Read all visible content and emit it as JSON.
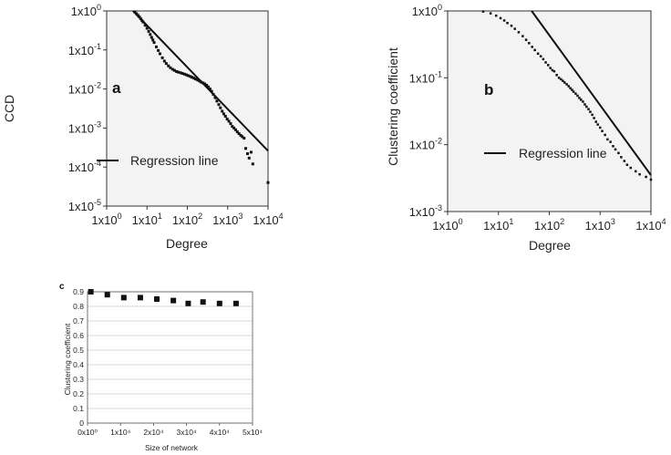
{
  "chart_data": [
    {
      "panel": "a",
      "type": "scatter",
      "scale": "log-log",
      "xlabel": "Degree",
      "ylabel": "CCD",
      "xlim": [
        1,
        10000
      ],
      "ylim": [
        1e-05,
        1
      ],
      "x_ticks": [
        1,
        10,
        100,
        1000,
        10000
      ],
      "y_ticks": [
        1e-05,
        0.0001,
        0.001,
        0.01,
        0.1,
        1
      ],
      "legend": "Regression line",
      "regression": {
        "x": [
          4.5,
          10000
        ],
        "y": [
          1.0,
          0.00026
        ]
      },
      "points": {
        "x": [
          5,
          5.5,
          6,
          6.5,
          7,
          7.5,
          8,
          9,
          10,
          11,
          12,
          13,
          14,
          15,
          17,
          19,
          21,
          24,
          27,
          30,
          34,
          38,
          43,
          48,
          54,
          60,
          68,
          76,
          85,
          95,
          105,
          118,
          130,
          145,
          160,
          180,
          200,
          220,
          245,
          270,
          300,
          330,
          365,
          400,
          440,
          490,
          540,
          600,
          660,
          730,
          800,
          880,
          970,
          1070,
          1180,
          1300,
          1430,
          1570,
          1730,
          1900,
          2100,
          2300,
          2550,
          2800,
          3100,
          3400,
          3800,
          4200,
          10000
        ],
        "y": [
          0.95,
          0.85,
          0.77,
          0.7,
          0.63,
          0.57,
          0.52,
          0.43,
          0.36,
          0.3,
          0.25,
          0.21,
          0.18,
          0.155,
          0.12,
          0.097,
          0.08,
          0.063,
          0.052,
          0.045,
          0.039,
          0.035,
          0.032,
          0.03,
          0.028,
          0.027,
          0.026,
          0.025,
          0.024,
          0.023,
          0.022,
          0.021,
          0.02,
          0.019,
          0.018,
          0.017,
          0.016,
          0.015,
          0.0143,
          0.0135,
          0.0125,
          0.0113,
          0.01,
          0.0087,
          0.0073,
          0.006,
          0.0049,
          0.004,
          0.0033,
          0.0027,
          0.0023,
          0.002,
          0.0017,
          0.0015,
          0.0013,
          0.0011,
          0.001,
          0.0009,
          0.0008,
          0.00072,
          0.00065,
          0.0006,
          0.00055,
          0.0003,
          0.00022,
          0.00017,
          0.00024,
          0.00012,
          4e-05
        ]
      }
    },
    {
      "panel": "b",
      "type": "scatter",
      "scale": "log-log",
      "xlabel": "Degree",
      "ylabel": "Clustering coefficient",
      "xlim": [
        1,
        10000
      ],
      "ylim": [
        0.001,
        1
      ],
      "x_ticks": [
        1,
        10,
        100,
        1000,
        10000
      ],
      "y_ticks": [
        0.001,
        0.01,
        0.1,
        1
      ],
      "legend": "Regression line",
      "regression": {
        "x": [
          45,
          10000
        ],
        "y": [
          1.0,
          0.0035
        ]
      },
      "points": {
        "x": [
          5,
          7,
          9,
          11,
          13,
          15,
          18,
          21,
          25,
          30,
          35,
          40,
          46,
          52,
          60,
          68,
          76,
          85,
          95,
          105,
          115,
          125,
          140,
          155,
          170,
          185,
          200,
          220,
          240,
          260,
          280,
          300,
          330,
          360,
          390,
          420,
          460,
          500,
          540,
          590,
          640,
          700,
          760,
          830,
          900,
          1000,
          1100,
          1250,
          1400,
          1600,
          1800,
          2000,
          2300,
          2600,
          3000,
          3400,
          4000,
          5000,
          6000,
          8000,
          10000
        ],
        "y": [
          0.98,
          0.92,
          0.85,
          0.78,
          0.72,
          0.66,
          0.6,
          0.54,
          0.48,
          0.42,
          0.37,
          0.33,
          0.29,
          0.26,
          0.23,
          0.21,
          0.19,
          0.17,
          0.155,
          0.14,
          0.13,
          0.125,
          0.11,
          0.1,
          0.095,
          0.09,
          0.085,
          0.08,
          0.075,
          0.07,
          0.066,
          0.062,
          0.058,
          0.054,
          0.05,
          0.047,
          0.044,
          0.04,
          0.037,
          0.034,
          0.031,
          0.028,
          0.025,
          0.022,
          0.02,
          0.018,
          0.016,
          0.014,
          0.012,
          0.011,
          0.0095,
          0.0085,
          0.0075,
          0.0065,
          0.0057,
          0.005,
          0.0045,
          0.004,
          0.0036,
          0.0033,
          0.003
        ]
      }
    },
    {
      "panel": "c",
      "type": "scatter",
      "xlabel": "Size of network",
      "ylabel": "Clustering coefficient",
      "xlim": [
        0,
        50000
      ],
      "ylim": [
        0,
        0.9
      ],
      "grid": true,
      "x_ticks": [
        "0x10⁰",
        "1x10⁴",
        "2x10⁴",
        "3x10⁴",
        "4x10⁴",
        "5x10⁴"
      ],
      "y_ticks": [
        "0",
        "0.1",
        "0.2",
        "0.3",
        "0.4",
        "0.5",
        "0.6",
        "0.7",
        "0.8",
        "0.9"
      ],
      "points": {
        "x": [
          1000,
          6000,
          11000,
          16000,
          21000,
          26000,
          30500,
          35000,
          40000,
          45000
        ],
        "y": [
          0.9,
          0.88,
          0.86,
          0.86,
          0.85,
          0.84,
          0.82,
          0.83,
          0.82,
          0.82
        ]
      }
    }
  ],
  "labels": {
    "a": {
      "letter": "a",
      "xlabel": "Degree",
      "ylabel": "CCD",
      "legend": "Regression line"
    },
    "b": {
      "letter": "b",
      "xlabel": "Degree",
      "ylabel": "Clustering coefficient",
      "legend": "Regression line"
    },
    "c": {
      "letter": "c",
      "xlabel": "Size of network",
      "ylabel": "Clustering coefficient"
    }
  }
}
